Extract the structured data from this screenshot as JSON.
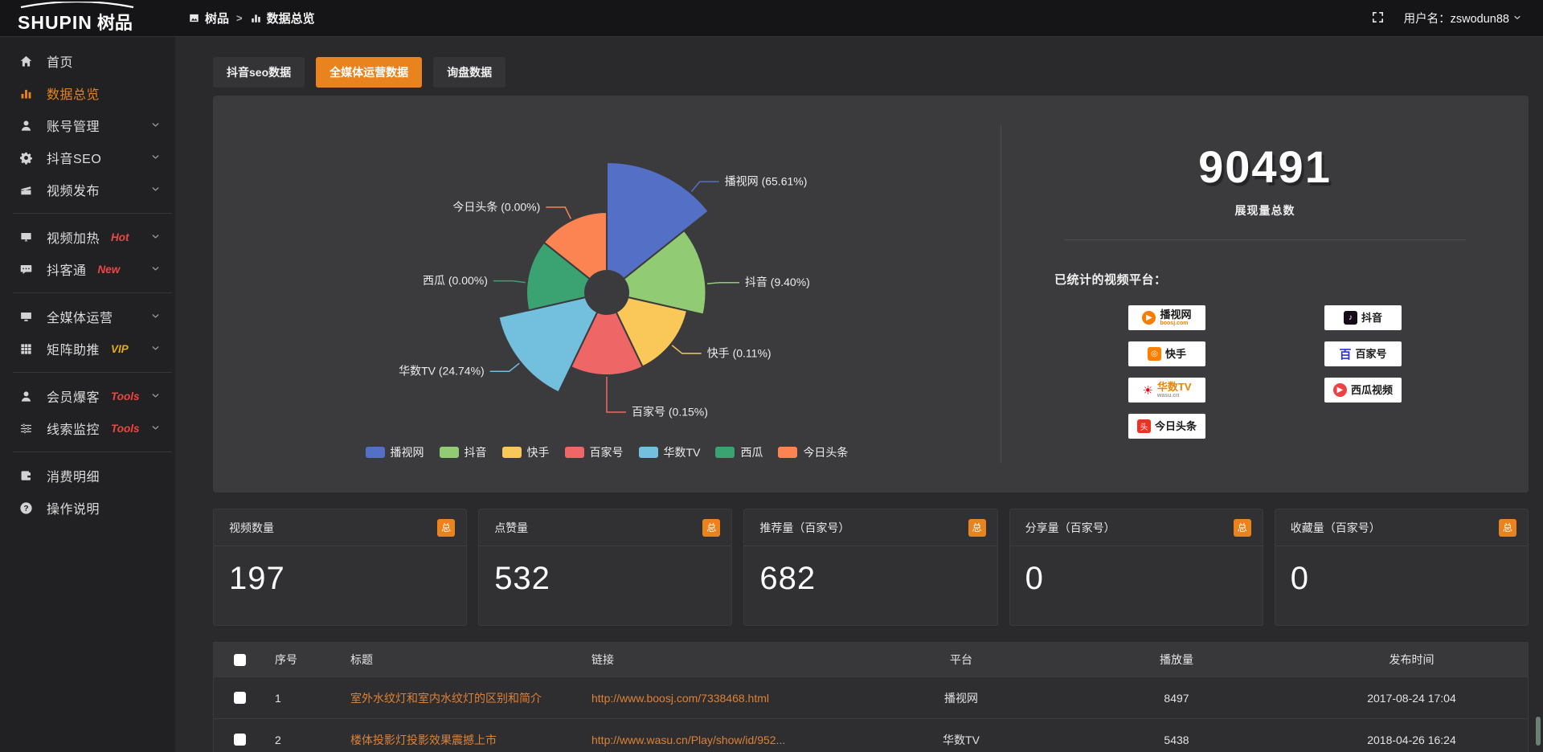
{
  "topbar": {
    "logo_text": "SHUPIN",
    "logo_suffix": "树品",
    "breadcrumb": [
      {
        "label": "树品",
        "icon": "photo"
      },
      {
        "label": "数据总览",
        "icon": "bar-chart"
      }
    ],
    "breadcrumb_separator": ">",
    "username_label": "用户名：zswodun88"
  },
  "sidebar": {
    "items": [
      {
        "key": "home",
        "label": "首页",
        "icon": "home",
        "active": false
      },
      {
        "key": "data-overview",
        "label": "数据总览",
        "icon": "bar-chart",
        "active": true
      },
      {
        "key": "account-management",
        "label": "账号管理",
        "icon": "user",
        "expandable": true
      },
      {
        "key": "douyin-seo",
        "label": "抖音SEO",
        "icon": "gear",
        "expandable": true
      },
      {
        "key": "video-publish",
        "label": "视频发布",
        "icon": "clapper",
        "expandable": true,
        "divider_after": true
      },
      {
        "key": "video-heating",
        "label": "视频加热",
        "icon": "screen",
        "badge": "Hot",
        "badge_color": "#ee4545",
        "expandable": true
      },
      {
        "key": "douketong",
        "label": "抖客通",
        "icon": "chat",
        "badge": "New",
        "badge_color": "#ee4545",
        "expandable": true,
        "divider_after": true
      },
      {
        "key": "all-media-operation",
        "label": "全媒体运营",
        "icon": "monitor",
        "expandable": true
      },
      {
        "key": "matrix-boost",
        "label": "矩阵助推",
        "icon": "grid",
        "badge": "VIP",
        "badge_color": "#e2aa1f",
        "expandable": true,
        "divider_after": true
      },
      {
        "key": "member-explosion",
        "label": "会员爆客",
        "icon": "person",
        "badge": "Tools",
        "badge_color": "#ee4545",
        "expandable": true
      },
      {
        "key": "clue-monitoring",
        "label": "线索监控",
        "icon": "sliders",
        "badge": "Tools",
        "badge_color": "#ee4545",
        "expandable": true,
        "divider_after": true
      },
      {
        "key": "consumption-details",
        "label": "消费明细",
        "icon": "wallet"
      },
      {
        "key": "operation-instructions",
        "label": "操作说明",
        "icon": "question"
      }
    ]
  },
  "tabs": [
    {
      "key": "douyin-seo-data",
      "label": "抖音seo数据",
      "active": false
    },
    {
      "key": "all-media-data",
      "label": "全媒体运营数据",
      "active": true
    },
    {
      "key": "inquiry-data",
      "label": "询盘数据",
      "active": false
    }
  ],
  "chart_data": {
    "type": "pie",
    "variant": "nightingale-rose",
    "legend_position": "bottom",
    "items": [
      {
        "name": "播视网",
        "value_pct": 65.61,
        "label": "播视网 (65.61%)",
        "color": "#5470c6"
      },
      {
        "name": "抖音",
        "value_pct": 9.4,
        "label": "抖音 (9.40%)",
        "color": "#91cc75"
      },
      {
        "name": "快手",
        "value_pct": 0.11,
        "label": "快手 (0.11%)",
        "color": "#fac858"
      },
      {
        "name": "百家号",
        "value_pct": 0.15,
        "label": "百家号 (0.15%)",
        "color": "#ee6666"
      },
      {
        "name": "华数TV",
        "value_pct": 24.74,
        "label": "华数TV (24.74%)",
        "color": "#73c0de"
      },
      {
        "name": "西瓜",
        "value_pct": 0.0,
        "label": "西瓜 (0.00%)",
        "color": "#3ba272"
      },
      {
        "name": "今日头条",
        "value_pct": 0.0,
        "label": "今日头条 (0.00%)",
        "color": "#fc8452"
      }
    ],
    "legend": [
      "播视网",
      "抖音",
      "快手",
      "百家号",
      "华数TV",
      "西瓜",
      "今日头条"
    ]
  },
  "summary": {
    "total_value": "90491",
    "total_label": "展现量总数",
    "platforms_title": "已统计的视频平台：",
    "platform_columns": [
      [
        {
          "key": "boosj",
          "name": "播视网",
          "sub": "boosj.com",
          "sub_color": "#f08300",
          "shape": "circle",
          "bg": "#f77c00",
          "glyph": "▶",
          "glyph_color": "#ffffff",
          "name_color": "#1a1a1a"
        },
        {
          "key": "kuaishou",
          "name": "快手",
          "shape": "square",
          "bg": "#ff7e00",
          "glyph": "◎",
          "glyph_color": "#ffffff",
          "name_color": "#1a1a1a"
        },
        {
          "key": "wasu",
          "name": "华数TV",
          "sub": "wasu.cn",
          "sub_color": "#9a9a9a",
          "shape": "none",
          "glyph": "☀",
          "glyph_color": "#e60012",
          "name_color": "#f08300"
        },
        {
          "key": "toutiao",
          "name": "今日头条",
          "shape": "square",
          "bg": "#ed3224",
          "glyph": "头",
          "glyph_color": "#ffffff",
          "name_color": "#1a1a1a"
        }
      ],
      [
        {
          "key": "douyin",
          "name": "抖音",
          "shape": "square",
          "bg": "#170b1a",
          "glyph": "♪",
          "glyph_color": "#ffffff",
          "name_color": "#1a1a1a"
        },
        {
          "key": "baijiahao",
          "name": "百家号",
          "shape": "none",
          "glyph": "百",
          "glyph_color": "#2932e1",
          "name_color": "#1a1a1a"
        },
        {
          "key": "xigua",
          "name": "西瓜视频",
          "shape": "circle",
          "bg": "#f04142",
          "glyph": "▶",
          "glyph_color": "#ffffff",
          "name_color": "#1a1a1a"
        }
      ]
    ]
  },
  "stat_cards": [
    {
      "title": "视频数量",
      "badge": "总",
      "value": "197"
    },
    {
      "title": "点赞量",
      "badge": "总",
      "value": "532"
    },
    {
      "title": "推荐量（百家号）",
      "badge": "总",
      "value": "682"
    },
    {
      "title": "分享量（百家号）",
      "badge": "总",
      "value": "0"
    },
    {
      "title": "收藏量（百家号）",
      "badge": "总",
      "value": "0"
    }
  ],
  "table": {
    "columns": [
      "序号",
      "标题",
      "链接",
      "平台",
      "播放量",
      "发布时间"
    ],
    "rows": [
      {
        "index": "1",
        "title": "室外水纹灯和室内水纹灯的区别和简介",
        "link": "http://www.boosj.com/7338468.html",
        "platform": "播视网",
        "plays": "8497",
        "published": "2017-08-24 17:04"
      },
      {
        "index": "2",
        "title": "楼体投影灯投影效果震撼上市",
        "link": "http://www.wasu.cn/Play/show/id/952...",
        "platform": "华数TV",
        "plays": "5438",
        "published": "2018-04-26 16:24"
      }
    ]
  },
  "colors": {
    "accent": "#e8831d",
    "link": "#dd8135",
    "panel": "#3b3b3e",
    "hot_badge": "#ee4545",
    "vip_badge": "#e2aa1f"
  }
}
